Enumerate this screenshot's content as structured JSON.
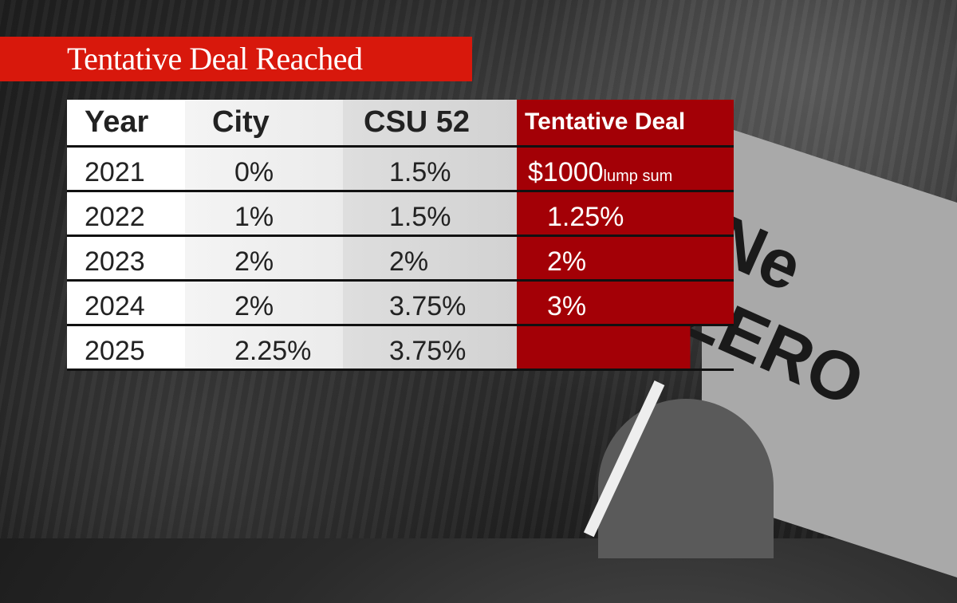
{
  "title": "Tentative Deal Reached",
  "table": {
    "headers": [
      "Year",
      "City",
      "CSU 52",
      "Tentative Deal"
    ],
    "rows": [
      {
        "year": "2021",
        "city": "0%",
        "csu52": "1.5%",
        "deal": "$1000",
        "deal_note": "lump sum"
      },
      {
        "year": "2022",
        "city": "1%",
        "csu52": "1.5%",
        "deal": "1.25%"
      },
      {
        "year": "2023",
        "city": "2%",
        "csu52": "2%",
        "deal": "2%"
      },
      {
        "year": "2024",
        "city": "2%",
        "csu52": "3.75%",
        "deal": "3%"
      },
      {
        "year": "2025",
        "city": "2.25%",
        "csu52": "3.75%",
        "deal": ""
      }
    ]
  },
  "background_photo": {
    "flag_text": "Ne\nZERO"
  },
  "colors": {
    "title_bar": "#d8180c",
    "deal_column": "#a30006"
  }
}
